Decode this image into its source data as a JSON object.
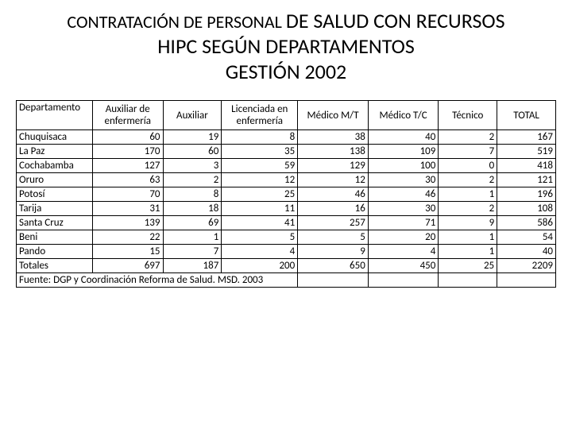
{
  "title": {
    "line1_small": "CONTRATACIÓN DE PERSONAL ",
    "line1_big": "DE SALUD CON RECURSOS",
    "line2": "HIPC SEGÚN DEPARTAMENTOS",
    "line3": "GESTIÓN 2002"
  },
  "table": {
    "columns": [
      "Departamento",
      "Auxiliar de enfermería",
      "Auxiliar",
      "Licenciada en enfermería",
      "Médico M/T",
      "Médico T/C",
      "Técnico",
      "TOTAL"
    ],
    "rows": [
      {
        "label": "Chuquisaca",
        "v": [
          60,
          19,
          8,
          38,
          40,
          2,
          167
        ]
      },
      {
        "label": "La Paz",
        "v": [
          170,
          60,
          35,
          138,
          109,
          7,
          519
        ]
      },
      {
        "label": "Cochabamba",
        "v": [
          127,
          3,
          59,
          129,
          100,
          0,
          418
        ]
      },
      {
        "label": "Oruro",
        "v": [
          63,
          2,
          12,
          12,
          30,
          2,
          121
        ]
      },
      {
        "label": "Potosí",
        "v": [
          70,
          8,
          25,
          46,
          46,
          1,
          196
        ]
      },
      {
        "label": "Tarija",
        "v": [
          31,
          18,
          11,
          16,
          30,
          2,
          108
        ]
      },
      {
        "label": "Santa Cruz",
        "v": [
          139,
          69,
          41,
          257,
          71,
          9,
          586
        ]
      },
      {
        "label": "Beni",
        "v": [
          22,
          1,
          5,
          5,
          20,
          1,
          54
        ]
      },
      {
        "label": "Pando",
        "v": [
          15,
          7,
          4,
          9,
          4,
          1,
          40
        ]
      },
      {
        "label": "Totales",
        "v": [
          697,
          187,
          200,
          650,
          450,
          25,
          2209
        ]
      }
    ],
    "source": "Fuente: DGP y Coordinación Reforma de Salud. MSD. 2003",
    "col_widths": [
      "13%",
      "12%",
      "10%",
      "13%",
      "12%",
      "12%",
      "10%",
      "10%"
    ]
  },
  "style": {
    "text_color": "#000000",
    "border_color": "#000000",
    "background": "#ffffff",
    "body_fontsize": 13,
    "title_small_fontsize": 22,
    "title_big_fontsize": 26
  }
}
